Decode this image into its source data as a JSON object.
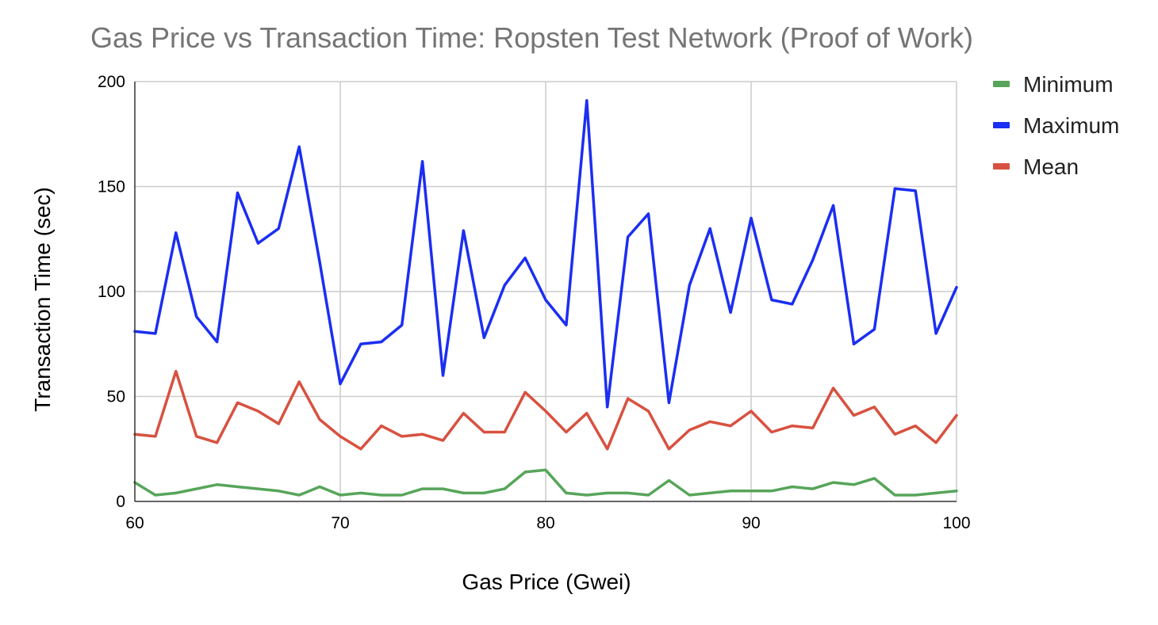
{
  "chart_data": {
    "type": "line",
    "title": "Gas Price vs Transaction Time: Ropsten Test Network (Proof of Work)",
    "xlabel": "Gas Price (Gwei)",
    "ylabel": "Transaction Time (sec)",
    "xlim": [
      60,
      100
    ],
    "ylim": [
      0,
      200
    ],
    "x_ticks": [
      "60",
      "70",
      "80",
      "90",
      "100"
    ],
    "y_ticks": [
      "0",
      "50",
      "100",
      "150",
      "200"
    ],
    "grid": true,
    "legend_position": "top-right",
    "x": [
      60,
      61,
      62,
      63,
      64,
      65,
      66,
      67,
      68,
      69,
      70,
      71,
      72,
      73,
      74,
      75,
      76,
      77,
      78,
      79,
      80,
      81,
      82,
      83,
      84,
      85,
      86,
      87,
      88,
      89,
      90,
      91,
      92,
      93,
      94,
      95,
      96,
      97,
      98,
      99,
      100
    ],
    "series": [
      {
        "name": "Minimum",
        "color": "#57a55a",
        "values": [
          9,
          3,
          4,
          6,
          8,
          7,
          6,
          5,
          3,
          7,
          3,
          4,
          3,
          3,
          6,
          6,
          4,
          4,
          6,
          14,
          15,
          4,
          3,
          4,
          4,
          3,
          10,
          3,
          4,
          5,
          5,
          5,
          7,
          6,
          9,
          8,
          11,
          3,
          3,
          4,
          5
        ]
      },
      {
        "name": "Maximum",
        "color": "#1b2ef2",
        "values": [
          81,
          80,
          128,
          88,
          76,
          147,
          123,
          130,
          169,
          114,
          56,
          75,
          76,
          84,
          162,
          60,
          129,
          78,
          103,
          116,
          96,
          84,
          191,
          45,
          126,
          137,
          47,
          103,
          130,
          90,
          135,
          96,
          94,
          115,
          141,
          75,
          82,
          149,
          148,
          80,
          102
        ]
      },
      {
        "name": "Mean",
        "color": "#d85140",
        "values": [
          32,
          31,
          62,
          31,
          28,
          47,
          43,
          37,
          57,
          39,
          31,
          25,
          36,
          31,
          32,
          29,
          42,
          33,
          33,
          52,
          43,
          33,
          42,
          25,
          49,
          43,
          25,
          34,
          38,
          36,
          43,
          33,
          36,
          35,
          54,
          41,
          45,
          32,
          36,
          28,
          41
        ]
      }
    ]
  }
}
